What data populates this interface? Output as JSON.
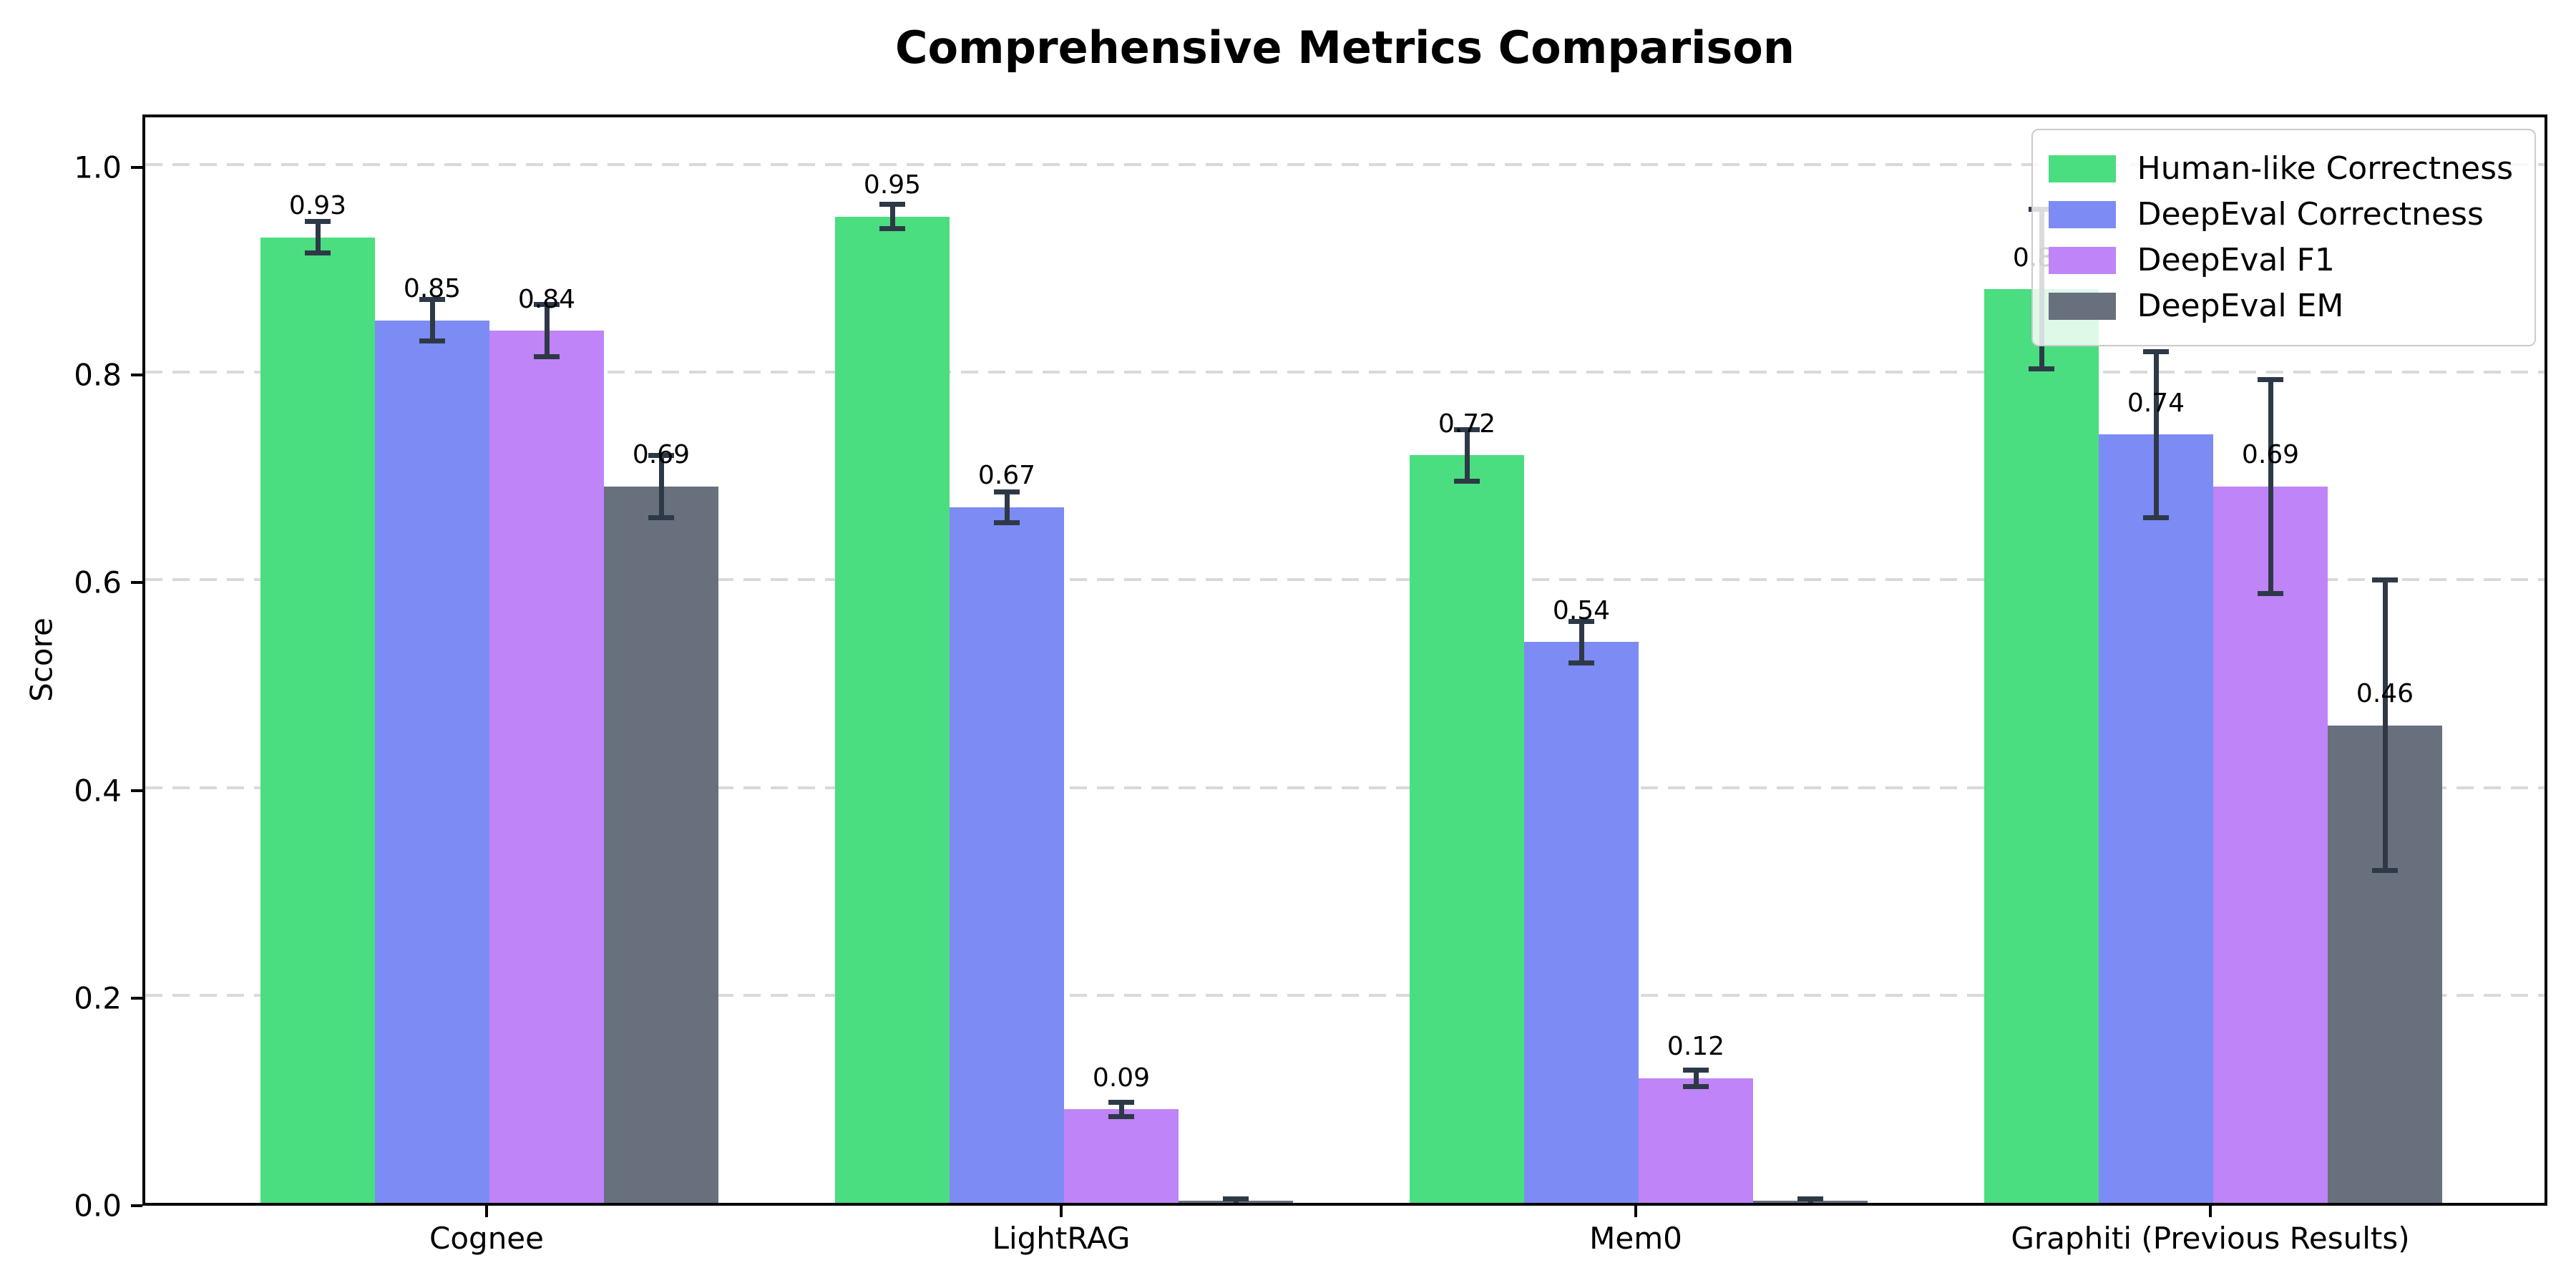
{
  "title": "Comprehensive Metrics Comparison",
  "chart_data": {
    "type": "bar",
    "title": "Comprehensive Metrics Comparison",
    "xlabel": "",
    "ylabel": "Score",
    "categories": [
      "Cognee",
      "LightRAG",
      "Mem0",
      "Graphiti (Previous Results)"
    ],
    "ytick_labels": [
      "0.0",
      "0.2",
      "0.4",
      "0.6",
      "0.8",
      "1.0"
    ],
    "ytick_values": [
      0.0,
      0.2,
      0.4,
      0.6,
      0.8,
      1.0
    ],
    "ylim": [
      0,
      1.05
    ],
    "grid": {
      "horizontal": true,
      "style": "dashed",
      "color": "#d9d9d9"
    },
    "legend_position": "upper-right",
    "series": [
      {
        "name": "Human-like Correctness",
        "color": "#4ade80",
        "values": [
          0.93,
          0.95,
          0.72,
          0.88
        ],
        "errors": [
          0.015,
          0.012,
          0.025,
          0.077
        ],
        "labels": [
          "0.93",
          "0.95",
          "0.72",
          "0.88"
        ]
      },
      {
        "name": "DeepEval Correctness",
        "color": "#7d8bf4",
        "values": [
          0.85,
          0.67,
          0.54,
          0.74
        ],
        "errors": [
          0.02,
          0.015,
          0.02,
          0.08
        ],
        "labels": [
          "0.85",
          "0.67",
          "0.54",
          "0.74"
        ]
      },
      {
        "name": "DeepEval F1",
        "color": "#bf84f7",
        "values": [
          0.84,
          0.09,
          0.12,
          0.69
        ],
        "errors": [
          0.025,
          0.007,
          0.008,
          0.103
        ],
        "labels": [
          "0.84",
          "0.09",
          "0.12",
          "0.69"
        ]
      },
      {
        "name": "DeepEval EM",
        "color": "#68707e",
        "values": [
          0.69,
          0.0,
          0.0,
          0.46
        ],
        "errors": [
          0.03,
          0.004,
          0.004,
          0.14
        ],
        "labels": [
          "0.69",
          null,
          null,
          "0.46"
        ]
      }
    ]
  },
  "style_colors": {
    "error_bar": "#2e3947",
    "gridline": "#d9d9d9",
    "spine": "#000000",
    "legend_border": "#cccccc"
  }
}
